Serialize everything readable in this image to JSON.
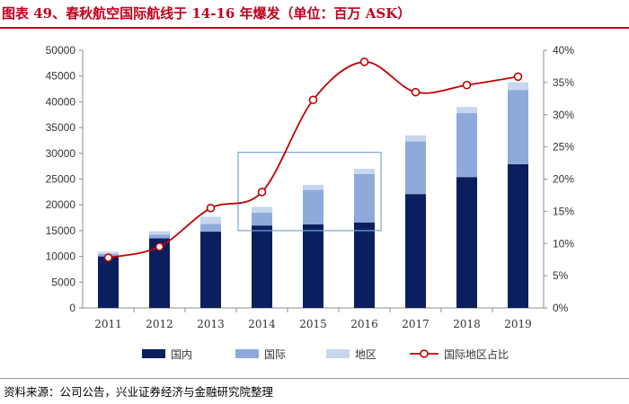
{
  "header": {
    "title": "图表 49、春秋航空国际航线于 14-16 年爆发（单位：百万 ASK）"
  },
  "footer": {
    "source": "资料来源：公司公告，兴业证券经济与金融研究院整理"
  },
  "colors": {
    "title": "#c0001d",
    "domestic": "#0b1f5e",
    "international": "#8eaadb",
    "regional": "#c6d7ef",
    "share_line": "#c00000",
    "highlight_box": "#7aa6d8"
  },
  "chart_data": {
    "type": "bar",
    "stacked": true,
    "title": "图表 49、春秋航空国际航线于 14-16 年爆发（单位：百万 ASK）",
    "categories": [
      "2011",
      "2012",
      "2013",
      "2014",
      "2015",
      "2016",
      "2017",
      "2018",
      "2019"
    ],
    "series": [
      {
        "name": "国内",
        "axis": "left",
        "values": [
          10000,
          13500,
          14800,
          16000,
          16200,
          16600,
          22100,
          25400,
          27900
        ]
      },
      {
        "name": "国际",
        "axis": "left",
        "values": [
          500,
          700,
          1500,
          2500,
          6700,
          9400,
          10200,
          12400,
          14400
        ]
      },
      {
        "name": "地区",
        "axis": "left",
        "values": [
          400,
          700,
          1400,
          1100,
          1000,
          1000,
          1200,
          1200,
          1500
        ]
      },
      {
        "name": "国际地区占比",
        "type": "line",
        "axis": "right",
        "values": [
          7.8,
          9.5,
          15.5,
          18.0,
          32.3,
          38.2,
          33.5,
          34.6,
          35.9
        ]
      }
    ],
    "yaxis_left": {
      "min": 0,
      "max": 50000,
      "ticks": [
        "0",
        "5000",
        "10000",
        "15000",
        "20000",
        "25000",
        "30000",
        "35000",
        "40000",
        "45000",
        "50000"
      ]
    },
    "yaxis_right": {
      "min": 0,
      "max": 40,
      "ticks": [
        "0%",
        "5%",
        "10%",
        "15%",
        "20%",
        "25%",
        "30%",
        "35%",
        "40%"
      ]
    },
    "highlight": {
      "from": "2014",
      "to": "2016",
      "y_from": 15000,
      "y_to": 30200
    },
    "legend": {
      "position": "bottom",
      "items": [
        "国内",
        "国际",
        "地区",
        "国际地区占比"
      ]
    },
    "grid": false
  }
}
